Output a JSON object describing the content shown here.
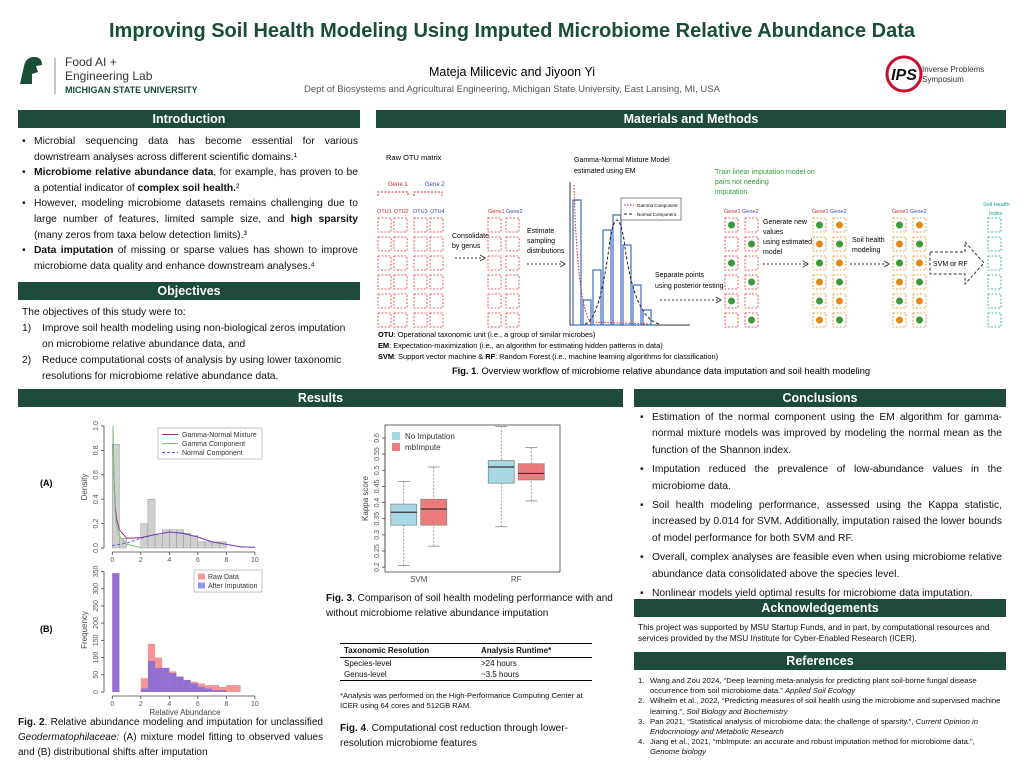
{
  "header": {
    "title": "Improving Soil Health Modeling Using Imputed Microbiome Relative Abundance Data",
    "lab_lines": [
      "Food AI +",
      "Engineering Lab"
    ],
    "university": "MICHIGAN STATE UNIVERSITY",
    "authors": "Mateja Milicevic and Jiyoon Yi",
    "affiliation": "Dept of Biosystems and Agricultural Engineering, Michigan State University, East Lansing, MI, USA",
    "ips": "IPS",
    "symposium_lines": [
      "Inverse Problems",
      "Symposium"
    ]
  },
  "introduction": {
    "heading": "Introduction",
    "bullets": [
      {
        "runs": [
          {
            "text": "Microbial sequencing data has become essential for various downstream analyses across different scientific domains.¹"
          }
        ]
      },
      {
        "runs": [
          {
            "text": "Microbiome relative abundance data",
            "bold": true
          },
          {
            "text": ", for example, has proven to be a potential indicator of "
          },
          {
            "text": "complex soil health.",
            "bold": true
          },
          {
            "text": "²"
          }
        ]
      },
      {
        "runs": [
          {
            "text": "However, modeling microbiome datasets remains challenging due to large number of features, limited sample size, and "
          },
          {
            "text": "high sparsity",
            "bold": true
          },
          {
            "text": " (many zeros from taxa below detection limits).³"
          }
        ]
      },
      {
        "runs": [
          {
            "text": "Data imputation",
            "bold": true
          },
          {
            "text": " of missing or sparse values has shown to improve microbiome data quality and enhance downstream analyses.⁴"
          }
        ]
      }
    ]
  },
  "objectives": {
    "heading": "Objectives",
    "lead": "The objectives of this study were to:",
    "items": [
      {
        "marker": "1)",
        "text": "Improve soil health modeling using non-biological zeros imputation on microbiome relative abundance data, and"
      },
      {
        "marker": "2)",
        "text": "Reduce computational costs of analysis by using lower taxonomic resolutions for microbiome relative abundance data."
      }
    ]
  },
  "methods": {
    "heading": "Materials and Methods",
    "diagram": {
      "raw_matrix": "Raw OTU matrix",
      "gene1": "Gene 1",
      "gene2": "Gene 2",
      "otus": [
        "OTU1",
        "OTU2",
        "OTU3",
        "OTU4"
      ],
      "consolidate": [
        "Consolidate",
        "by genus"
      ],
      "estimate": [
        "Estimate",
        "sampling",
        "distributions"
      ],
      "mixture_model": [
        "Gamma-Normal Mixture Model",
        "estimated using EM"
      ],
      "legend": [
        "Gamma Component",
        "Normal Component"
      ],
      "separate": [
        "Separate points",
        "using posterior testing"
      ],
      "train": [
        "Train linear imputation model on",
        "pairs not needing",
        "imputation"
      ],
      "gene1_short": "Gene1",
      "gene2_short": "Gene2",
      "generate": [
        "Generate new",
        "values",
        "using estimated",
        "model"
      ],
      "soil_modeling": [
        "Soil health",
        "modeling"
      ],
      "classifier": "SVM or RF",
      "index": [
        "Soil Health",
        "Index"
      ]
    },
    "notes": [
      {
        "runs": [
          {
            "text": "OTU",
            "bold": true
          },
          {
            "text": ": Operational taxonomic unit (i.e., a group of similar microbes)"
          }
        ]
      },
      {
        "runs": [
          {
            "text": "EM",
            "bold": true
          },
          {
            "text": ": Expectation-maximization (i.e., an algorithm for estimating hidden patterns in data)"
          }
        ]
      },
      {
        "runs": [
          {
            "text": "SVM",
            "bold": true
          },
          {
            "text": ": Support vector machine & "
          },
          {
            "text": "RF",
            "bold": true
          },
          {
            "text": ": Random Forest (i.e., machine learning algorithms for classification)"
          }
        ]
      }
    ],
    "caption": {
      "runs": [
        {
          "text": "Fig. 1",
          "bold": true
        },
        {
          "text": ". Overview workflow of microbiome relative abundance data imputation and soil health modeling"
        }
      ]
    }
  },
  "results": {
    "heading": "Results",
    "fig2_caption": {
      "runs": [
        {
          "text": "Fig. 2",
          "bold": true
        },
        {
          "text": ". Relative abundance modeling and imputation for unclassified "
        },
        {
          "text": "Geodermatophilaceae:",
          "italic": true
        },
        {
          "text": " (A) mixture model fitting to observed values and (B) distributional shifts after imputation"
        }
      ]
    },
    "fig3_caption": {
      "runs": [
        {
          "text": "Fig. 3",
          "bold": true
        },
        {
          "text": ". Comparison of soil health modeling performance with and without microbiome relative abundance imputation"
        }
      ]
    },
    "table": {
      "headers": [
        "Taxonomic Resolution",
        "Analysis Runtime*"
      ],
      "rows": [
        [
          "Species-level",
          ">24 hours"
        ],
        [
          "Genus-level",
          "~3.5 hours"
        ]
      ],
      "note": "*Analysis was performed on the High-Performance Computing Center at ICER using 64 cores and 512GB RAM."
    },
    "fig4_caption": {
      "runs": [
        {
          "text": "Fig. 4",
          "bold": true
        },
        {
          "text": ". Computational cost reduction through lower-resolution microbiome features"
        }
      ]
    }
  },
  "chart_data": [
    {
      "type": "histogram",
      "panel_label": "(A)",
      "ylabel": "Density",
      "bins": [
        0,
        0.5,
        1,
        1.5,
        2,
        2.5,
        3,
        3.5,
        4,
        4.5,
        5,
        5.5,
        6,
        6.5,
        7,
        7.5,
        8
      ],
      "values": [
        0.85,
        0.08,
        0,
        0,
        0.2,
        0.4,
        0.1,
        0.15,
        0.15,
        0.15,
        0.12,
        0.1,
        0.05,
        0.05,
        0.05,
        0.05
      ],
      "color": "#d0d0d0",
      "curves": [
        {
          "name": "Gamma-Normal Mixture",
          "color": "#9b2d8f",
          "x": [
            0.05,
            0.1,
            0.2,
            0.3,
            0.5,
            1,
            2,
            3,
            4,
            5,
            6,
            7,
            8,
            9,
            10
          ],
          "y": [
            1.0,
            0.62,
            0.34,
            0.24,
            0.15,
            0.08,
            0.085,
            0.11,
            0.13,
            0.12,
            0.09,
            0.05,
            0.03,
            0.01,
            0.005
          ]
        },
        {
          "name": "Gamma Component",
          "color": "#7cc47c",
          "x": [
            0.05,
            0.1,
            0.2,
            0.3,
            0.5,
            1,
            2
          ],
          "y": [
            1.0,
            0.6,
            0.3,
            0.18,
            0.1,
            0.03,
            0.005
          ]
        },
        {
          "name": "Normal Component",
          "color": "#5a5ad8",
          "dashed": true,
          "x": [
            0,
            1,
            2,
            3,
            4,
            5,
            6,
            7,
            8,
            9,
            10
          ],
          "y": [
            0.02,
            0.04,
            0.08,
            0.11,
            0.13,
            0.12,
            0.09,
            0.05,
            0.03,
            0.01,
            0.005
          ]
        }
      ],
      "xlim": [
        -0.3,
        10.5
      ],
      "xticks": [
        0,
        2,
        4,
        6,
        8,
        10
      ],
      "ylim": [
        0,
        1
      ],
      "yticks": [
        {
          "value": 0,
          "label": "0.0"
        },
        0.2,
        0.4,
        0.6,
        0.8,
        {
          "value": 1,
          "label": "1.0"
        }
      ]
    },
    {
      "type": "histogram",
      "panel_label": "(B)",
      "xlabel": "Relative Abundance",
      "ylabel": "Frequency",
      "bins": [
        0,
        0.5,
        1,
        1.5,
        2,
        2.5,
        3,
        3.5,
        4,
        4.5,
        5,
        5.5,
        6,
        6.5,
        7,
        7.5,
        8,
        8.5,
        9,
        9.5,
        10
      ],
      "series": [
        {
          "name": "Raw Data",
          "color": "#f25c5c",
          "values": [
            345,
            0,
            0,
            0,
            40,
            140,
            100,
            70,
            60,
            45,
            35,
            30,
            25,
            20,
            20,
            15,
            20,
            20,
            0,
            0
          ]
        },
        {
          "name": "After Imputation",
          "color": "#5c5cf2",
          "values": [
            345,
            0,
            0,
            0,
            10,
            90,
            70,
            70,
            55,
            45,
            35,
            25,
            15,
            10,
            5,
            5,
            0,
            0,
            0,
            0
          ]
        }
      ],
      "xlim": [
        -0.3,
        10.5
      ],
      "xticks": [
        0,
        2,
        4,
        6,
        8,
        10
      ],
      "ylim": [
        0,
        360
      ],
      "yticks": [
        0,
        50,
        100,
        150,
        200,
        250,
        300,
        350
      ]
    },
    {
      "type": "box",
      "ylabel": "Kappa score",
      "categories": [
        "SVM",
        "RF"
      ],
      "series": [
        {
          "name": "No Imputation",
          "color": "#a8d8e4",
          "values": [
            {
              "min": 0.205,
              "q1": 0.33,
              "median": 0.37,
              "q3": 0.395,
              "max": 0.465
            },
            {
              "min": 0.325,
              "q1": 0.46,
              "median": 0.51,
              "q3": 0.53,
              "max": 0.635
            }
          ]
        },
        {
          "name": "mbImpute",
          "color": "#ee7b7b",
          "values": [
            {
              "min": 0.265,
              "q1": 0.33,
              "median": 0.38,
              "q3": 0.41,
              "max": 0.51
            },
            {
              "min": 0.405,
              "q1": 0.47,
              "median": 0.49,
              "q3": 0.52,
              "max": 0.57
            }
          ]
        }
      ],
      "ylim": [
        0.185,
        0.64
      ],
      "yticks": [
        0.2,
        0.25,
        0.3,
        0.35,
        0.4,
        0.45,
        0.5,
        0.55,
        0.6
      ]
    }
  ],
  "conclusions": {
    "heading": "Conclusions",
    "bullets": [
      "Estimation of the normal component using the EM algorithm for gamma-normal mixture models was improved by modeling the normal mean as the function of the Shannon index.",
      "Imputation reduced the prevalence of low-abundance values in the microbiome data.",
      "Soil health modeling performance, assessed using the Kappa statistic, increased by 0.014 for SVM. Additionally, imputation raised the lower bounds of model performance for both SVM and RF.",
      "Overall, complex analyses are feasible even when using microbiome relative abundance data consolidated above the species level.",
      "Nonlinear models yield optimal results for microbiome data imputation."
    ]
  },
  "acknowledgements": {
    "heading": "Acknowledgements",
    "text": "This project was supported by MSU Startup Funds, and in part, by computational resources and services provided by the MSU Institute for Cyber-Enabled Research (ICER)."
  },
  "references": {
    "heading": "References",
    "items": [
      {
        "marker": "1.",
        "runs": [
          {
            "text": "Wang and Zou 2024, “Deep learning meta-analysis for predicting plant soil-borne fungal disease occurrence from soil microbiome data.” "
          },
          {
            "text": "Applied Soil Ecology",
            "italic": true
          }
        ]
      },
      {
        "marker": "2.",
        "runs": [
          {
            "text": "Wilhelm et al., 2022, “Predicting measures of soil health using the microbiome and supervised machine learning.”, "
          },
          {
            "text": "Soil Biology and Biochemistry",
            "italic": true
          }
        ]
      },
      {
        "marker": "3.",
        "runs": [
          {
            "text": "Pan 2021, “Statistical analysis of microbiome data: the challenge of sparsity.”, "
          },
          {
            "text": "Current Opinion in Endocrinology and Metabolic Research",
            "italic": true
          }
        ]
      },
      {
        "marker": "4.",
        "runs": [
          {
            "text": "Jiang et al., 2021, “mbImpute: an accurate and robust imputation method for microbiome data.”, "
          },
          {
            "text": "Genome biology",
            "italic": true
          }
        ]
      }
    ]
  }
}
